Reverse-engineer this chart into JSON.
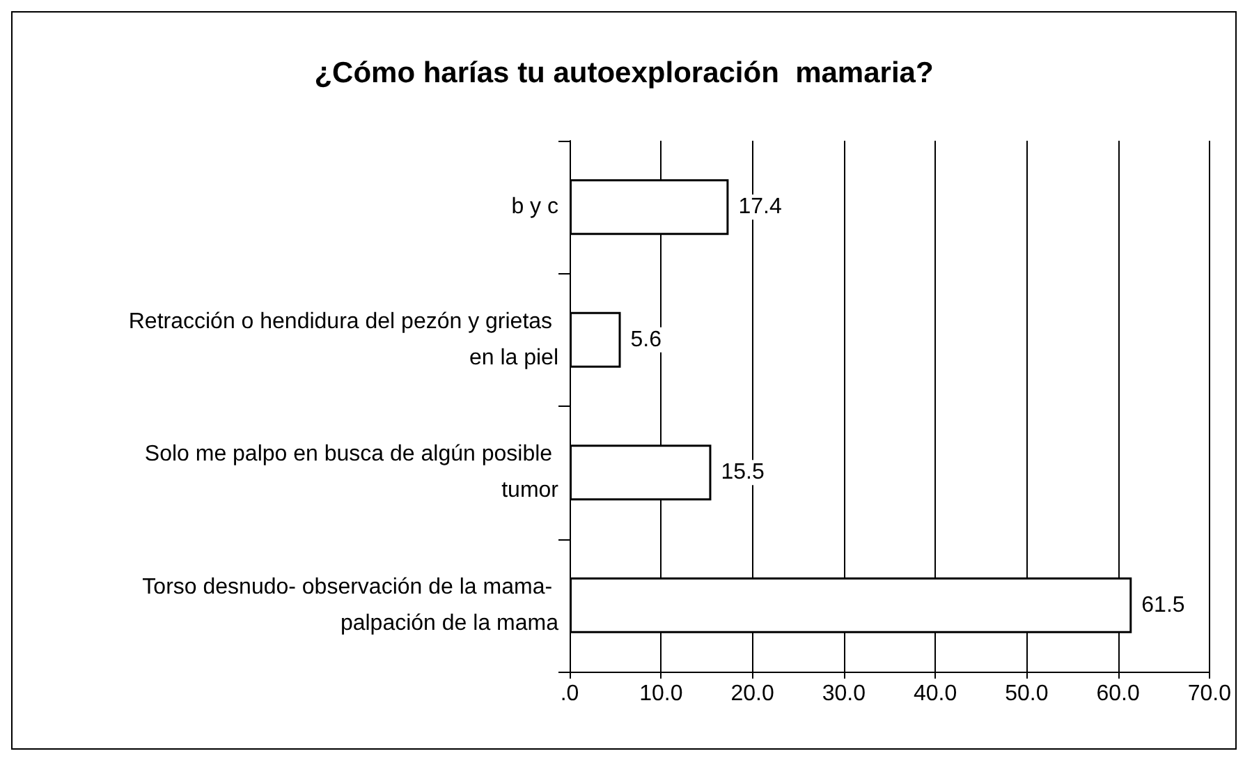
{
  "chart_data": {
    "type": "bar",
    "orientation": "horizontal",
    "title": "¿Cómo harías tu autoexploración  mamaria?",
    "categories": [
      "b y c",
      "Retracción o hendidura del pezón y grietas en la piel",
      "Solo me palpo en busca de algún posible tumor",
      "Torso desnudo- observación de la mama- palpación de la mama"
    ],
    "values": [
      17.4,
      5.6,
      15.5,
      61.5
    ],
    "color": "#ffffff",
    "data_labels": true,
    "xlim": [
      0,
      70
    ],
    "xticks": [
      {
        "value": 0,
        "label": ".0"
      },
      {
        "value": 10,
        "label": "10.0"
      },
      {
        "value": 20,
        "label": "20.0"
      },
      {
        "value": 30,
        "label": "30.0"
      },
      {
        "value": 40,
        "label": "40.0"
      },
      {
        "value": 50,
        "label": "50.0"
      },
      {
        "value": 60,
        "label": "60.0"
      },
      {
        "value": 70,
        "label": "70.0"
      }
    ],
    "grid": "x"
  }
}
